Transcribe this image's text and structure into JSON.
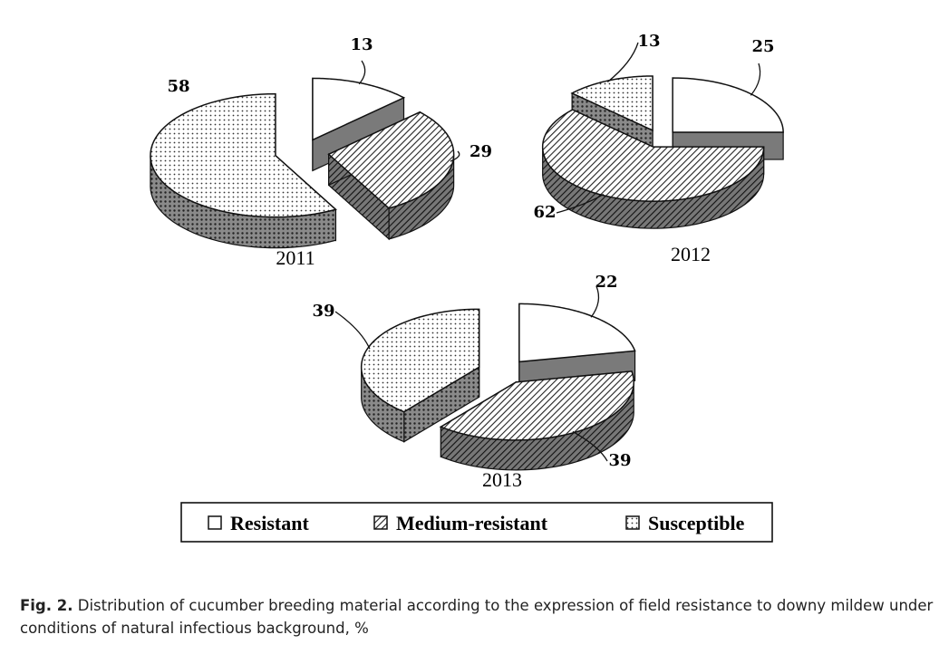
{
  "chart_data": {
    "type": "pie",
    "legend_placement": "bottom-center",
    "legend": [
      {
        "name": "Resistant",
        "pattern": "white"
      },
      {
        "name": "Medium-resistant",
        "pattern": "hatch"
      },
      {
        "name": "Susceptible",
        "pattern": "dots"
      }
    ],
    "charts": [
      {
        "year": "2011",
        "slices": [
          {
            "series": "Resistant",
            "value": 13,
            "label": "13"
          },
          {
            "series": "Medium-resistant",
            "value": 29,
            "label": "29"
          },
          {
            "series": "Susceptible",
            "value": 58,
            "label": "58"
          }
        ]
      },
      {
        "year": "2012",
        "slices": [
          {
            "series": "Resistant",
            "value": 25,
            "label": "25"
          },
          {
            "series": "Medium-resistant",
            "value": 62,
            "label": "62"
          },
          {
            "series": "Susceptible",
            "value": 13,
            "label": "13"
          }
        ]
      },
      {
        "year": "2013",
        "slices": [
          {
            "series": "Resistant",
            "value": 22,
            "label": "22"
          },
          {
            "series": "Medium-resistant",
            "value": 39,
            "label": "39"
          },
          {
            "series": "Susceptible",
            "value": 39,
            "label": "39"
          }
        ]
      }
    ]
  },
  "caption": {
    "prefix": "Fig. 2.",
    "text": " Distribution of cucumber breeding material according to the expression of field resistance to downy mildew under conditions of natural infectious background, %"
  }
}
